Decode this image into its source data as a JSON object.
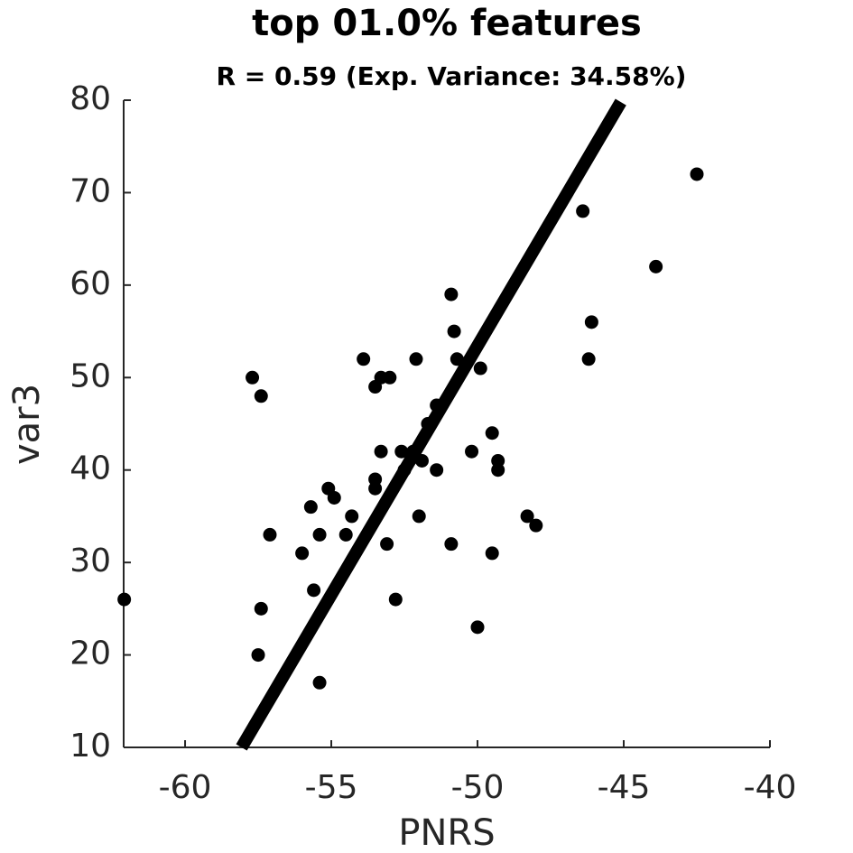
{
  "chart_data": {
    "type": "scatter",
    "title": "top 01.0% features",
    "subtitle": "R = 0.59 (Exp. Variance: 34.58%)",
    "x_label": "PNRS",
    "y_label": "var3",
    "color": "#000000",
    "x": [
      -62.08,
      -57.7,
      -57.4,
      -57.1,
      -57.4,
      -57.5,
      -56.0,
      -55.7,
      -55.6,
      -55.4,
      -55.4,
      -55.1,
      -54.9,
      -54.5,
      -54.3,
      -53.9,
      -53.5,
      -53.5,
      -53.5,
      -53.3,
      -53.3,
      -53.1,
      -53.0,
      -52.8,
      -52.6,
      -52.5,
      -52.1,
      -52.2,
      -52.0,
      -51.9,
      -51.7,
      -51.4,
      -51.4,
      -50.9,
      -50.9,
      -50.8,
      -50.7,
      -50.2,
      -50.0,
      -49.9,
      -49.5,
      -49.5,
      -49.3,
      -49.3,
      -48.3,
      -48.0,
      -46.4,
      -46.2,
      -46.1,
      -43.9,
      -42.5
    ],
    "values": [
      26,
      50,
      48,
      33,
      25,
      20,
      31,
      36,
      27,
      33,
      17,
      38,
      37,
      33,
      35,
      52,
      49,
      38,
      39,
      50,
      42,
      32,
      50,
      26,
      42,
      40,
      52,
      42,
      35,
      41,
      45,
      47,
      40,
      59,
      32,
      55,
      52,
      42,
      23,
      51,
      44,
      31,
      41,
      40,
      35,
      34,
      68,
      52,
      56,
      62,
      72
    ],
    "regression": {
      "x": [
        -58.07,
        -45.1
      ],
      "y": [
        10,
        79.8
      ]
    },
    "xlim": [
      -62.1,
      -40
    ],
    "ylim": [
      10,
      80
    ],
    "xticks": [
      -60,
      -55,
      -50,
      -45,
      -40
    ],
    "yticks": [
      10,
      20,
      30,
      40,
      50,
      60,
      70,
      80
    ]
  }
}
